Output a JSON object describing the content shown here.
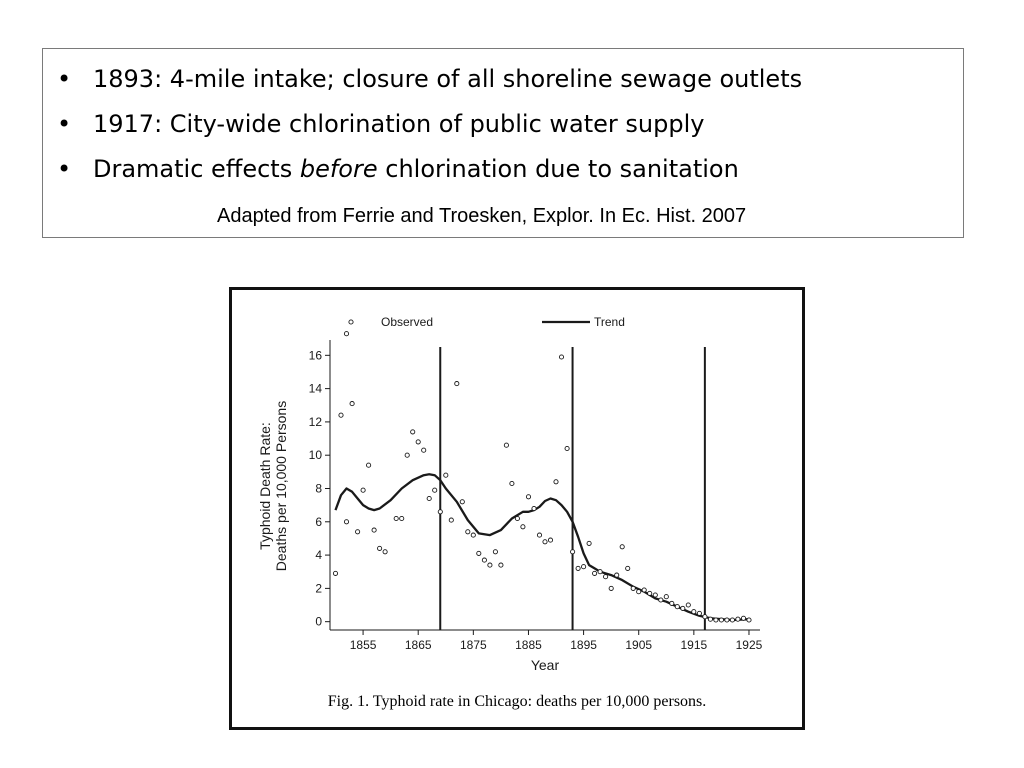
{
  "slide": {
    "bullets": [
      {
        "marker": "•",
        "parts": [
          "1893: 4-mile intake; closure of all shoreline sewage outlets"
        ]
      },
      {
        "marker": "•",
        "parts": [
          "1917: City-wide chlorination of public water supply"
        ]
      },
      {
        "marker": "•",
        "parts": [
          "Dramatic effects ",
          "before",
          " chlorination due to sanitation"
        ]
      }
    ],
    "citation": "Adapted from Ferrie and Troesken,  Explor. In Ec. Hist. 2007"
  },
  "figure": {
    "caption": "Fig. 1. Typhoid rate in Chicago: deaths per 10,000 persons."
  },
  "chart_data": {
    "type": "scatter",
    "title": "",
    "xlabel": "Year",
    "ylabel_line1": "Typhoid Death Rate:",
    "ylabel_line2": "Deaths per 10,000 Persons",
    "xlim": [
      1849,
      1927
    ],
    "ylim": [
      -0.5,
      16.8
    ],
    "x_ticks": [
      1855,
      1865,
      1875,
      1885,
      1895,
      1905,
      1915,
      1925
    ],
    "y_ticks": [
      0,
      2,
      4,
      6,
      8,
      10,
      12,
      14,
      16
    ],
    "legend": {
      "placement": "top",
      "observed_label": "Observed",
      "trend_label": "Trend"
    },
    "vertical_lines": [
      1869,
      1893,
      1917
    ],
    "series": [
      {
        "name": "Observed",
        "kind": "points",
        "points": [
          [
            1850,
            2.9
          ],
          [
            1851,
            12.4
          ],
          [
            1852,
            6.0
          ],
          [
            1852,
            17.3
          ],
          [
            1853,
            13.1
          ],
          [
            1854,
            5.4
          ],
          [
            1855,
            7.9
          ],
          [
            1856,
            9.4
          ],
          [
            1857,
            5.5
          ],
          [
            1858,
            4.4
          ],
          [
            1859,
            4.2
          ],
          [
            1861,
            6.2
          ],
          [
            1862,
            6.2
          ],
          [
            1863,
            10.0
          ],
          [
            1864,
            11.4
          ],
          [
            1865,
            10.8
          ],
          [
            1866,
            10.3
          ],
          [
            1867,
            7.4
          ],
          [
            1868,
            7.9
          ],
          [
            1869,
            6.6
          ],
          [
            1870,
            8.8
          ],
          [
            1871,
            6.1
          ],
          [
            1872,
            14.3
          ],
          [
            1873,
            7.2
          ],
          [
            1874,
            5.4
          ],
          [
            1875,
            5.2
          ],
          [
            1876,
            4.1
          ],
          [
            1877,
            3.7
          ],
          [
            1878,
            3.4
          ],
          [
            1879,
            4.2
          ],
          [
            1880,
            3.4
          ],
          [
            1881,
            10.6
          ],
          [
            1882,
            8.3
          ],
          [
            1883,
            6.2
          ],
          [
            1884,
            5.7
          ],
          [
            1885,
            7.5
          ],
          [
            1886,
            6.8
          ],
          [
            1887,
            5.2
          ],
          [
            1888,
            4.8
          ],
          [
            1889,
            4.9
          ],
          [
            1890,
            8.4
          ],
          [
            1891,
            15.9
          ],
          [
            1892,
            10.4
          ],
          [
            1893,
            4.2
          ],
          [
            1894,
            3.2
          ],
          [
            1895,
            3.3
          ],
          [
            1896,
            4.7
          ],
          [
            1897,
            2.9
          ],
          [
            1898,
            3.0
          ],
          [
            1899,
            2.7
          ],
          [
            1900,
            2.0
          ],
          [
            1901,
            2.8
          ],
          [
            1902,
            4.5
          ],
          [
            1903,
            3.2
          ],
          [
            1904,
            2.0
          ],
          [
            1905,
            1.8
          ],
          [
            1906,
            1.9
          ],
          [
            1907,
            1.7
          ],
          [
            1908,
            1.6
          ],
          [
            1909,
            1.3
          ],
          [
            1910,
            1.5
          ],
          [
            1911,
            1.1
          ],
          [
            1912,
            0.9
          ],
          [
            1913,
            0.8
          ],
          [
            1914,
            1.0
          ],
          [
            1915,
            0.6
          ],
          [
            1916,
            0.5
          ],
          [
            1917,
            0.3
          ],
          [
            1918,
            0.15
          ],
          [
            1919,
            0.1
          ],
          [
            1920,
            0.1
          ],
          [
            1921,
            0.1
          ],
          [
            1922,
            0.1
          ],
          [
            1923,
            0.15
          ],
          [
            1924,
            0.2
          ],
          [
            1925,
            0.1
          ]
        ]
      },
      {
        "name": "Trend",
        "kind": "line",
        "points": [
          [
            1850,
            6.7
          ],
          [
            1851,
            7.6
          ],
          [
            1852,
            8.0
          ],
          [
            1853,
            7.8
          ],
          [
            1854,
            7.4
          ],
          [
            1855,
            7.0
          ],
          [
            1856,
            6.8
          ],
          [
            1857,
            6.7
          ],
          [
            1858,
            6.8
          ],
          [
            1860,
            7.3
          ],
          [
            1862,
            8.0
          ],
          [
            1864,
            8.5
          ],
          [
            1866,
            8.8
          ],
          [
            1867,
            8.85
          ],
          [
            1868,
            8.8
          ],
          [
            1869,
            8.5
          ],
          [
            1870,
            8.0
          ],
          [
            1872,
            7.2
          ],
          [
            1874,
            6.1
          ],
          [
            1876,
            5.3
          ],
          [
            1878,
            5.2
          ],
          [
            1880,
            5.5
          ],
          [
            1882,
            6.2
          ],
          [
            1884,
            6.6
          ],
          [
            1885,
            6.6
          ],
          [
            1886,
            6.7
          ],
          [
            1887,
            6.9
          ],
          [
            1888,
            7.25
          ],
          [
            1889,
            7.4
          ],
          [
            1890,
            7.3
          ],
          [
            1891,
            7.0
          ],
          [
            1892,
            6.6
          ],
          [
            1893,
            6.0
          ],
          [
            1894,
            5.1
          ],
          [
            1895,
            4.1
          ],
          [
            1896,
            3.4
          ],
          [
            1897,
            3.2
          ],
          [
            1898,
            3.0
          ],
          [
            1900,
            2.8
          ],
          [
            1902,
            2.5
          ],
          [
            1904,
            2.1
          ],
          [
            1906,
            1.8
          ],
          [
            1908,
            1.4
          ],
          [
            1910,
            1.2
          ],
          [
            1912,
            0.9
          ],
          [
            1914,
            0.6
          ],
          [
            1916,
            0.35
          ],
          [
            1918,
            0.2
          ],
          [
            1920,
            0.15
          ],
          [
            1922,
            0.1
          ],
          [
            1925,
            0.15
          ]
        ]
      }
    ],
    "colors": {
      "ink": "#1a1a1a",
      "marker_fill": "#ffffff"
    }
  }
}
